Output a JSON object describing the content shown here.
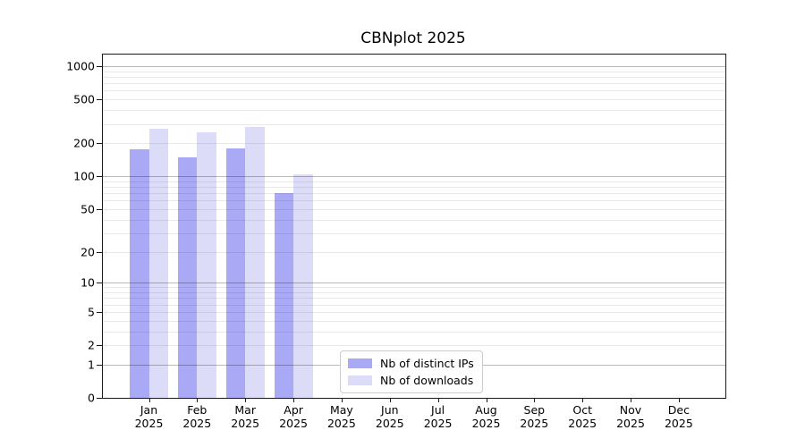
{
  "chart_data": {
    "type": "bar",
    "title": "CBNplot 2025",
    "year_label": "2025",
    "months": [
      "Jan",
      "Feb",
      "Mar",
      "Apr",
      "May",
      "Jun",
      "Jul",
      "Aug",
      "Sep",
      "Oct",
      "Nov",
      "Dec"
    ],
    "series": [
      {
        "name": "Nb of distinct IPs",
        "color": "#a9a9f6",
        "values": [
          175,
          148,
          180,
          70,
          0,
          0,
          0,
          0,
          0,
          0,
          0,
          0
        ]
      },
      {
        "name": "Nb of downloads",
        "color": "#dcdcf9",
        "values": [
          270,
          250,
          280,
          105,
          0,
          0,
          0,
          0,
          0,
          0,
          0,
          0
        ]
      }
    ],
    "y_ticks": [
      0,
      1,
      2,
      5,
      10,
      20,
      50,
      100,
      200,
      500,
      1000
    ],
    "y_scale": "log1p",
    "ylim": [
      0,
      1274
    ],
    "grid": {
      "on": true,
      "major_values": [
        1,
        10,
        100,
        1000
      ],
      "major_color": "#00000045",
      "minor_color": "#00000016"
    },
    "legend_position": "lower-center",
    "frame_color": "#1a1a1a",
    "background_color": "#ffffff"
  }
}
